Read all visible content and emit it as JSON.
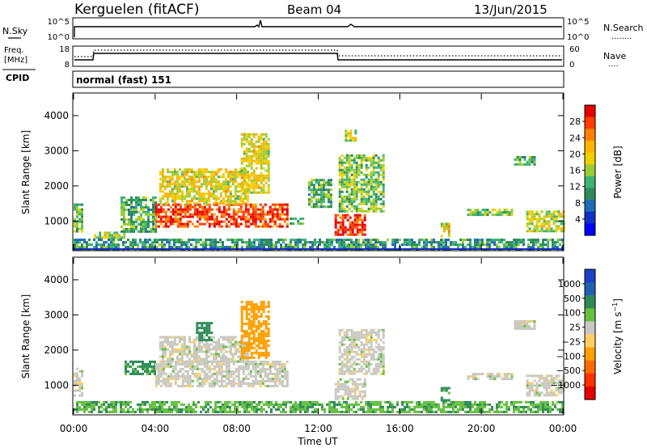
{
  "header": {
    "station": "Kerguelen (fitACF)",
    "beam": "Beam 04",
    "date": "13/Jun/2015"
  },
  "status_panels": {
    "noise": {
      "left_label": "N.Sky",
      "left_ticks": [
        "10^5",
        "10^0"
      ],
      "right_ticks": [
        "10^5",
        "10^0"
      ],
      "right_label": "N.Search",
      "right_dots": "........"
    },
    "freq": {
      "label_top": "Freq.",
      "label_bottom": "[MHz]",
      "left_ticks": [
        "18",
        "8"
      ],
      "right_ticks": [
        "60",
        "0"
      ],
      "right_label": "Nave",
      "right_dots": "...."
    },
    "cpid": {
      "label": "CPID",
      "mode": "normal (fast) 151"
    }
  },
  "chart_data": [
    {
      "type": "heatmap",
      "parameter": "Power",
      "ylabel": "Slant Range [km]",
      "ylim": [
        180,
        4620
      ],
      "yticks": [
        1000,
        2000,
        3000,
        4000
      ],
      "xlim": [
        0,
        24
      ],
      "colorbar": {
        "label": "Power [dB]",
        "ticks": [
          "28",
          "24",
          "20",
          "16",
          "12",
          "8",
          "4"
        ],
        "colors": [
          "#e60000",
          "#ff3b00",
          "#ff8000",
          "#ffb300",
          "#f0d000",
          "#9acd32",
          "#3cb371",
          "#2e8b57",
          "#1e6bb8",
          "#1030c8",
          "#0000ff"
        ]
      },
      "echo_regions": [
        {
          "t_start": 0.0,
          "t_end": 0.4,
          "r_min": 700,
          "r_max": 1500,
          "power_db": 14
        },
        {
          "t_start": 1.0,
          "t_end": 2.5,
          "r_min": 550,
          "r_max": 700,
          "power_db": 16
        },
        {
          "t_start": 2.3,
          "t_end": 4.0,
          "r_min": 700,
          "r_max": 1700,
          "power_db": 12
        },
        {
          "t_start": 4.0,
          "t_end": 10.5,
          "r_min": 850,
          "r_max": 1500,
          "power_db": 27
        },
        {
          "t_start": 4.2,
          "t_end": 8.5,
          "r_min": 1500,
          "r_max": 2500,
          "power_db": 18
        },
        {
          "t_start": 8.2,
          "t_end": 9.6,
          "r_min": 1800,
          "r_max": 3500,
          "power_db": 18
        },
        {
          "t_start": 10.6,
          "t_end": 11.3,
          "r_min": 900,
          "r_max": 1100,
          "power_db": 12
        },
        {
          "t_start": 11.5,
          "t_end": 12.6,
          "r_min": 1400,
          "r_max": 2200,
          "power_db": 12
        },
        {
          "t_start": 12.8,
          "t_end": 14.3,
          "r_min": 600,
          "r_max": 1200,
          "power_db": 28
        },
        {
          "t_start": 13.0,
          "t_end": 15.2,
          "r_min": 1300,
          "r_max": 2900,
          "power_db": 14
        },
        {
          "t_start": 13.3,
          "t_end": 13.8,
          "r_min": 3300,
          "r_max": 3600,
          "power_db": 16
        },
        {
          "t_start": 18.0,
          "t_end": 18.4,
          "r_min": 600,
          "r_max": 950,
          "power_db": 18
        },
        {
          "t_start": 19.3,
          "t_end": 21.5,
          "r_min": 1150,
          "r_max": 1350,
          "power_db": 14
        },
        {
          "t_start": 21.6,
          "t_end": 22.6,
          "r_min": 2600,
          "r_max": 2850,
          "power_db": 12
        },
        {
          "t_start": 22.2,
          "t_end": 24.0,
          "r_min": 700,
          "r_max": 1300,
          "power_db": 16
        },
        {
          "t_start": 0.0,
          "t_end": 24.0,
          "r_min": 200,
          "r_max": 500,
          "power_db": 10
        }
      ]
    },
    {
      "type": "heatmap",
      "parameter": "Velocity",
      "ylabel": "Slant Range [km]",
      "ylim": [
        180,
        4620
      ],
      "yticks": [
        1000,
        2000,
        3000,
        4000
      ],
      "xlim": [
        0,
        24
      ],
      "xlabel": "Time UT",
      "xticks": [
        "00:00",
        "04:00",
        "08:00",
        "12:00",
        "16:00",
        "20:00",
        "00:00"
      ],
      "colorbar": {
        "label": "Velocity [m s^-1]",
        "ticks": [
          "1000",
          "500",
          "100",
          "25",
          "−25",
          "−100",
          "−500",
          "−1000"
        ],
        "colors": [
          "#1e3fc8",
          "#2060b0",
          "#2e8b57",
          "#66c040",
          "#c8c8c0",
          "#ffd060",
          "#ffa000",
          "#ff6a00",
          "#ff3000",
          "#e60000"
        ]
      },
      "echo_regions": [
        {
          "t_start": 0.0,
          "t_end": 0.4,
          "r_min": 700,
          "r_max": 1500,
          "velocity": 0
        },
        {
          "t_start": 0.0,
          "t_end": 24.0,
          "r_min": 250,
          "r_max": 550,
          "velocity": 90
        },
        {
          "t_start": 2.5,
          "t_end": 4.0,
          "r_min": 1300,
          "r_max": 1700,
          "velocity": 120
        },
        {
          "t_start": 4.0,
          "t_end": 10.5,
          "r_min": 1000,
          "r_max": 1700,
          "velocity": 0
        },
        {
          "t_start": 4.2,
          "t_end": 8.5,
          "r_min": 1700,
          "r_max": 2400,
          "velocity": 0
        },
        {
          "t_start": 6.0,
          "t_end": 6.8,
          "r_min": 2300,
          "r_max": 2800,
          "velocity": 400
        },
        {
          "t_start": 8.2,
          "t_end": 9.6,
          "r_min": 1800,
          "r_max": 3400,
          "velocity": -150
        },
        {
          "t_start": 12.8,
          "t_end": 14.3,
          "r_min": 600,
          "r_max": 1200,
          "velocity": 0
        },
        {
          "t_start": 13.0,
          "t_end": 15.2,
          "r_min": 1300,
          "r_max": 2600,
          "velocity": 0
        },
        {
          "t_start": 18.0,
          "t_end": 18.4,
          "r_min": 600,
          "r_max": 950,
          "velocity": 120
        },
        {
          "t_start": 19.3,
          "t_end": 21.5,
          "r_min": 1150,
          "r_max": 1350,
          "velocity": 0
        },
        {
          "t_start": 21.6,
          "t_end": 22.6,
          "r_min": 2600,
          "r_max": 2850,
          "velocity": 0
        },
        {
          "t_start": 22.2,
          "t_end": 24.0,
          "r_min": 700,
          "r_max": 1300,
          "velocity": 0
        }
      ]
    }
  ]
}
